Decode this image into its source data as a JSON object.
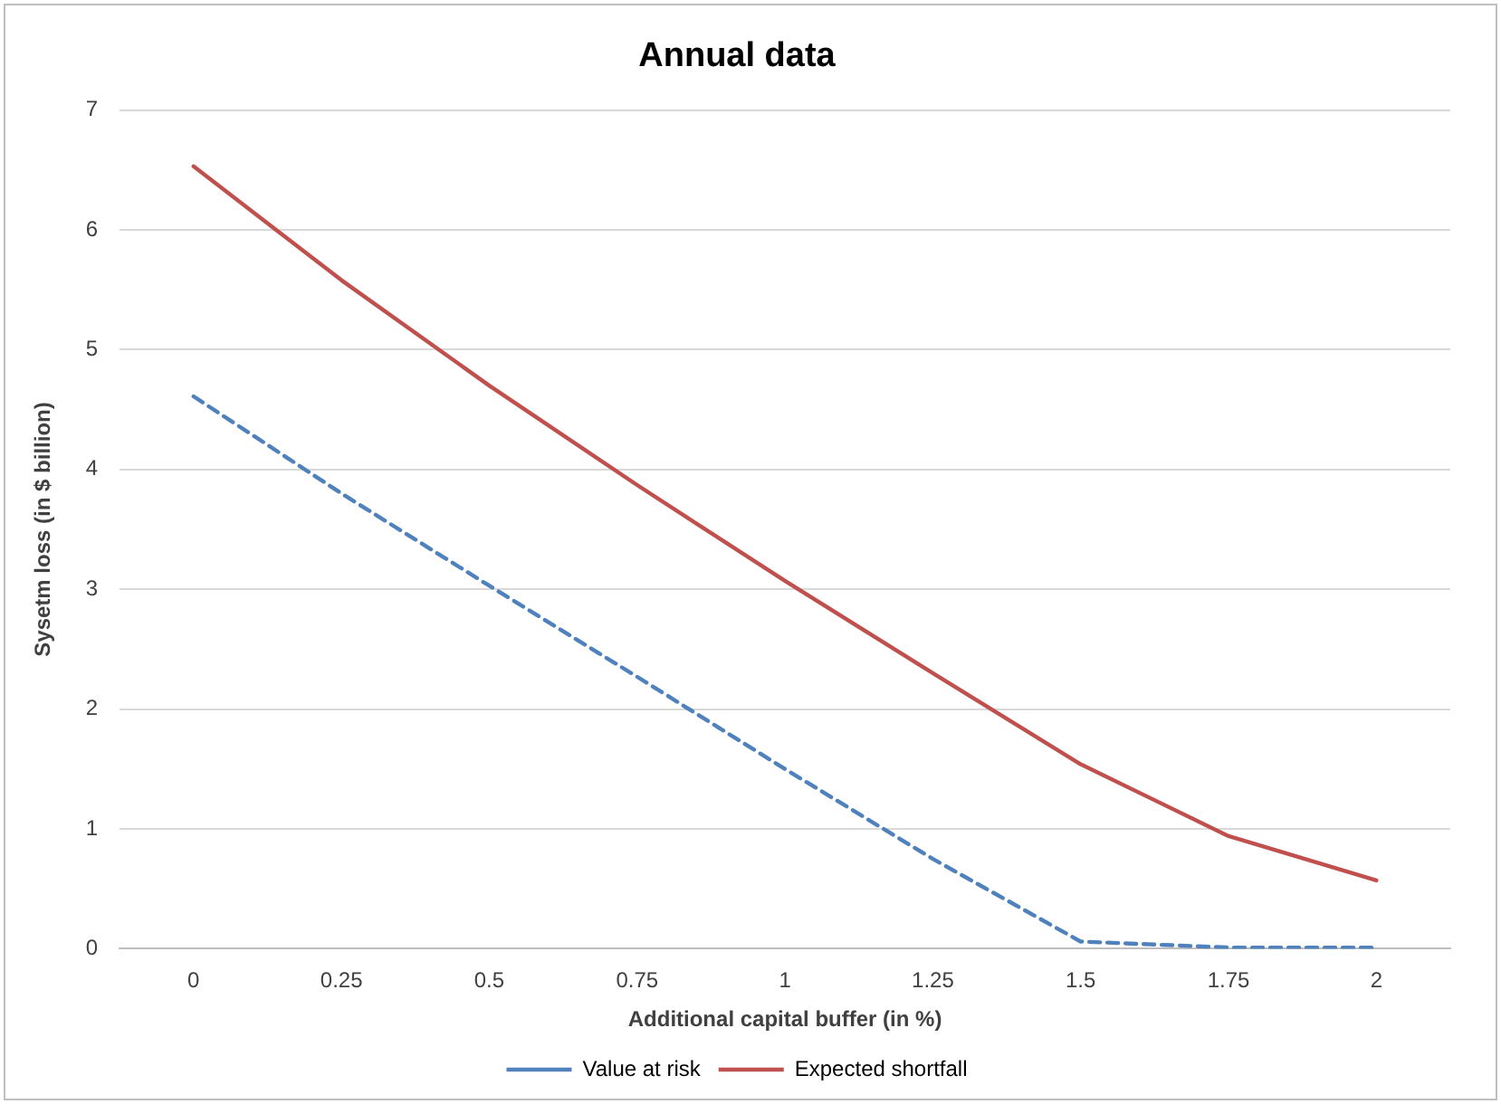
{
  "chart_data": {
    "type": "line",
    "title": "Annual data",
    "xlabel": "Additional capital buffer (in %)",
    "ylabel": "Sysetm loss (in $ billion)",
    "categories": [
      "0",
      "0.25",
      "0.5",
      "0.75",
      "1",
      "1.25",
      "1.5",
      "1.75",
      "2"
    ],
    "series": [
      {
        "name": "Value at risk",
        "color": "#4f81bd",
        "line_style": "dashed",
        "values": [
          4.61,
          3.8,
          3.03,
          2.27,
          1.5,
          0.75,
          0.06,
          0.01,
          0.01
        ]
      },
      {
        "name": "Expected shortfall",
        "color": "#c0504d",
        "line_style": "solid",
        "values": [
          6.53,
          5.58,
          4.7,
          3.87,
          3.07,
          2.3,
          1.54,
          0.94,
          0.57
        ]
      }
    ],
    "ylim": [
      0,
      7
    ],
    "yticks": [
      0,
      1,
      2,
      3,
      4,
      5,
      6,
      7
    ],
    "grid": "y",
    "legend": "bottom",
    "marker": "none"
  }
}
